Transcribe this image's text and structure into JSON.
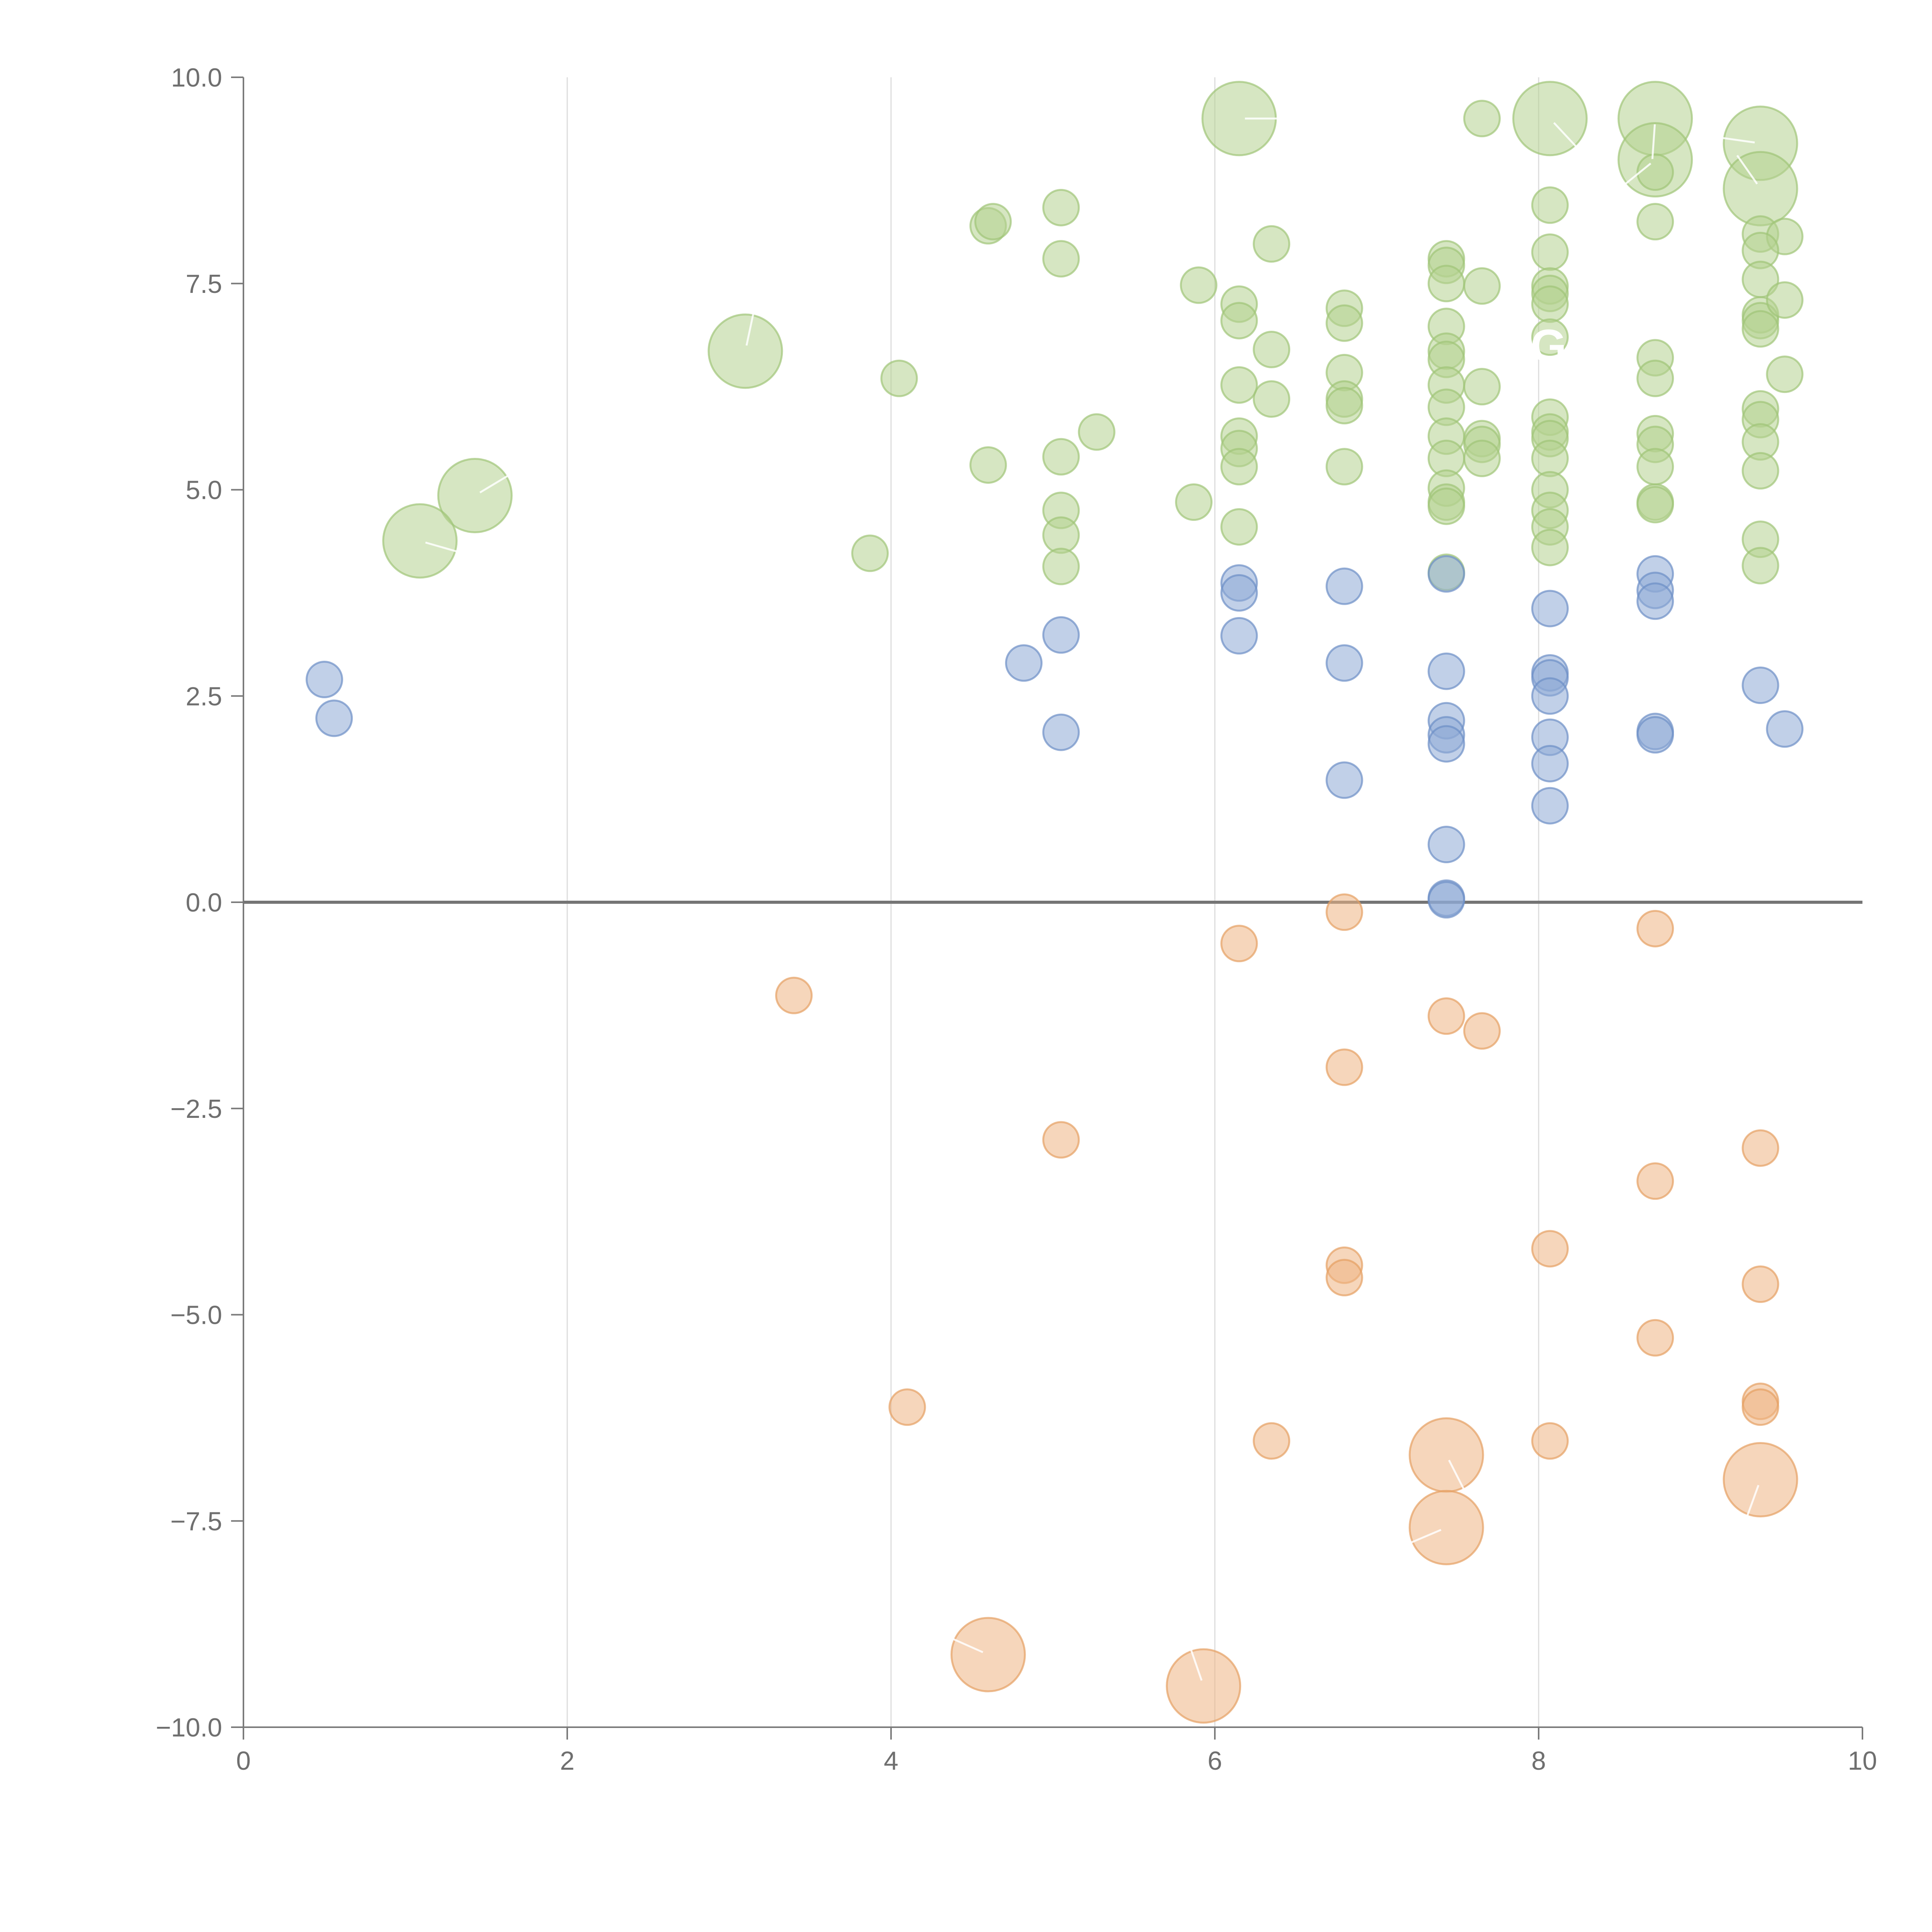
{
  "chart_data": {
    "type": "scatter",
    "title": "",
    "xlabel": "",
    "ylabel": "",
    "xlim": [
      0,
      10
    ],
    "ylim": [
      -10,
      10
    ],
    "x_ticks": [
      "0",
      "2",
      "4",
      "6",
      "8",
      "10"
    ],
    "y_ticks": [
      "10.0",
      "7.5",
      "5.0",
      "2.5",
      "0.0",
      "−2.5",
      "−5.0",
      "−7.5",
      "−10.0"
    ],
    "grid": "vertical",
    "legend": "none",
    "colors": {
      "green": "#b5d18f",
      "blue": "#8eaad6",
      "orange": "#eeb483",
      "green_edge": "#9fc477",
      "blue_edge": "#6c8fc6",
      "orange_edge": "#e69f63"
    },
    "annotations": [
      "G"
    ],
    "series": [
      {
        "name": "green",
        "color": "#b5d18f",
        "points": [
          [
            6.15,
            9.5,
            2
          ],
          [
            7.65,
            9.5,
            1
          ],
          [
            8.07,
            9.5,
            2
          ],
          [
            8.72,
            9.5,
            2
          ],
          [
            8.72,
            9.0,
            2
          ],
          [
            9.37,
            9.2,
            2
          ],
          [
            9.37,
            8.65,
            2
          ],
          [
            8.72,
            8.85,
            1
          ],
          [
            8.72,
            8.25,
            1
          ],
          [
            8.07,
            8.45,
            1
          ],
          [
            8.07,
            7.88,
            1
          ],
          [
            9.37,
            8.1,
            1
          ],
          [
            9.52,
            8.07,
            1
          ],
          [
            9.37,
            7.9,
            1
          ],
          [
            9.37,
            7.55,
            1
          ],
          [
            9.37,
            7.12,
            1
          ],
          [
            9.37,
            7.05,
            1
          ],
          [
            9.37,
            6.95,
            1
          ],
          [
            9.52,
            7.3,
            1
          ],
          [
            9.52,
            6.4,
            1
          ],
          [
            4.6,
            8.2,
            1
          ],
          [
            4.63,
            8.25,
            1
          ],
          [
            5.05,
            8.42,
            1
          ],
          [
            5.05,
            7.8,
            1
          ],
          [
            6.35,
            7.98,
            1
          ],
          [
            5.9,
            7.48,
            1
          ],
          [
            6.15,
            7.25,
            1
          ],
          [
            6.15,
            7.05,
            1
          ],
          [
            6.35,
            6.7,
            1
          ],
          [
            6.35,
            6.1,
            1
          ],
          [
            6.15,
            6.27,
            1
          ],
          [
            6.15,
            5.65,
            1
          ],
          [
            6.15,
            5.5,
            1
          ],
          [
            6.15,
            5.28,
            1
          ],
          [
            6.15,
            4.55,
            1
          ],
          [
            6.8,
            7.2,
            1
          ],
          [
            6.8,
            7.02,
            1
          ],
          [
            6.8,
            6.42,
            1
          ],
          [
            6.8,
            6.1,
            1
          ],
          [
            6.8,
            6.02,
            1
          ],
          [
            6.8,
            5.28,
            1
          ],
          [
            7.43,
            7.8,
            1
          ],
          [
            7.43,
            7.72,
            1
          ],
          [
            7.43,
            7.5,
            1
          ],
          [
            7.43,
            6.98,
            1
          ],
          [
            7.43,
            6.68,
            1
          ],
          [
            7.43,
            6.58,
            1
          ],
          [
            7.43,
            6.27,
            1
          ],
          [
            7.43,
            6.0,
            1
          ],
          [
            7.43,
            5.65,
            1
          ],
          [
            7.43,
            5.38,
            1
          ],
          [
            7.43,
            5.02,
            1
          ],
          [
            7.43,
            4.85,
            1
          ],
          [
            7.43,
            4.8,
            1
          ],
          [
            7.43,
            4.0,
            1
          ],
          [
            7.65,
            7.47,
            1
          ],
          [
            7.65,
            6.25,
            1
          ],
          [
            7.65,
            5.62,
            1
          ],
          [
            7.65,
            5.55,
            1
          ],
          [
            7.65,
            5.38,
            1
          ],
          [
            8.07,
            7.47,
            1
          ],
          [
            8.07,
            7.38,
            1
          ],
          [
            8.07,
            7.25,
            1
          ],
          [
            8.07,
            6.85,
            1
          ],
          [
            8.07,
            5.88,
            1
          ],
          [
            8.07,
            5.7,
            1
          ],
          [
            8.07,
            5.62,
            1
          ],
          [
            8.07,
            5.38,
            1
          ],
          [
            8.07,
            5.0,
            1
          ],
          [
            8.07,
            4.75,
            1
          ],
          [
            8.07,
            4.55,
            1
          ],
          [
            8.07,
            4.3,
            1
          ],
          [
            8.72,
            6.6,
            1
          ],
          [
            8.72,
            6.35,
            1
          ],
          [
            8.72,
            5.68,
            1
          ],
          [
            8.72,
            5.55,
            1
          ],
          [
            8.72,
            5.28,
            1
          ],
          [
            8.72,
            4.85,
            1
          ],
          [
            8.72,
            4.82,
            1
          ],
          [
            9.37,
            5.98,
            1
          ],
          [
            9.37,
            5.85,
            1
          ],
          [
            9.37,
            5.58,
            1
          ],
          [
            9.37,
            5.23,
            1
          ],
          [
            9.37,
            4.4,
            1
          ],
          [
            9.37,
            4.08,
            1
          ],
          [
            4.05,
            6.35,
            1
          ],
          [
            5.27,
            5.7,
            1
          ],
          [
            5.05,
            5.4,
            1
          ],
          [
            4.6,
            5.3,
            1
          ],
          [
            5.05,
            4.75,
            1
          ],
          [
            5.05,
            4.45,
            1
          ],
          [
            5.05,
            4.07,
            1
          ],
          [
            5.87,
            4.85,
            1
          ],
          [
            3.87,
            4.23,
            1
          ],
          [
            3.1,
            6.68,
            2
          ],
          [
            1.43,
            4.93,
            2
          ],
          [
            1.09,
            4.38,
            2
          ]
        ]
      },
      {
        "name": "blue",
        "color": "#8eaad6",
        "points": [
          [
            0.5,
            2.7,
            1
          ],
          [
            0.56,
            2.23,
            1
          ],
          [
            4.82,
            2.9,
            1
          ],
          [
            5.05,
            3.24,
            1
          ],
          [
            5.05,
            2.06,
            1
          ],
          [
            6.15,
            3.87,
            1
          ],
          [
            6.15,
            3.75,
            1
          ],
          [
            6.15,
            3.23,
            1
          ],
          [
            6.8,
            3.83,
            1
          ],
          [
            6.8,
            2.9,
            1
          ],
          [
            6.8,
            1.48,
            1
          ],
          [
            7.43,
            3.98,
            1
          ],
          [
            7.43,
            2.8,
            1
          ],
          [
            7.43,
            2.2,
            1
          ],
          [
            7.43,
            2.03,
            1
          ],
          [
            7.43,
            1.92,
            1
          ],
          [
            7.43,
            0.7,
            1
          ],
          [
            7.43,
            0.05,
            1
          ],
          [
            7.43,
            0.03,
            1
          ],
          [
            8.07,
            3.56,
            1
          ],
          [
            8.07,
            2.78,
            1
          ],
          [
            8.07,
            2.72,
            1
          ],
          [
            8.07,
            2.5,
            1
          ],
          [
            8.07,
            2.0,
            1
          ],
          [
            8.07,
            1.68,
            1
          ],
          [
            8.07,
            1.17,
            1
          ],
          [
            8.72,
            3.98,
            1
          ],
          [
            8.72,
            3.78,
            1
          ],
          [
            8.72,
            3.65,
            1
          ],
          [
            8.72,
            2.07,
            1
          ],
          [
            8.72,
            2.03,
            1
          ],
          [
            9.37,
            2.63,
            1
          ],
          [
            9.52,
            2.1,
            1
          ]
        ]
      },
      {
        "name": "orange",
        "color": "#eeb483",
        "points": [
          [
            6.8,
            -0.12,
            1
          ],
          [
            6.15,
            -0.5,
            1
          ],
          [
            8.72,
            -0.32,
            1
          ],
          [
            3.4,
            -1.13,
            1
          ],
          [
            7.43,
            -1.38,
            1
          ],
          [
            7.65,
            -1.56,
            1
          ],
          [
            6.8,
            -2.0,
            1
          ],
          [
            5.05,
            -2.88,
            1
          ],
          [
            9.37,
            -2.98,
            1
          ],
          [
            8.72,
            -3.38,
            1
          ],
          [
            8.07,
            -4.2,
            1
          ],
          [
            6.8,
            -4.4,
            1
          ],
          [
            6.8,
            -4.55,
            1
          ],
          [
            9.37,
            -4.63,
            1
          ],
          [
            8.72,
            -5.28,
            1
          ],
          [
            4.1,
            -6.12,
            1
          ],
          [
            9.37,
            -6.05,
            1
          ],
          [
            9.37,
            -6.12,
            1
          ],
          [
            6.35,
            -6.53,
            1
          ],
          [
            8.07,
            -6.53,
            1
          ],
          [
            7.43,
            -6.7,
            2
          ],
          [
            9.37,
            -7.0,
            2
          ],
          [
            7.43,
            -7.58,
            2
          ],
          [
            4.6,
            -9.12,
            2
          ],
          [
            5.93,
            -9.5,
            2
          ]
        ]
      }
    ]
  }
}
